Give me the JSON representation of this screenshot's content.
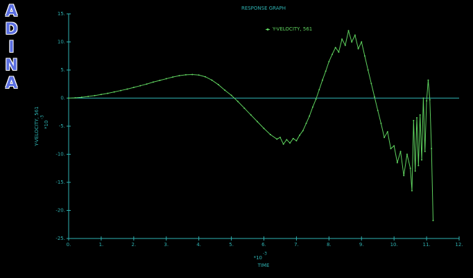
{
  "logo": "ADINA",
  "chart_data": {
    "type": "line",
    "title": "RESPONSE GRAPH",
    "x_label": "TIME",
    "x_scale_base": "*10",
    "x_scale_exp": "-3",
    "y_label": "Y-VELOCITY, 561",
    "y_scale_base": "*10",
    "y_scale_exp": "-3",
    "x": [
      0,
      0.2,
      0.4,
      0.6,
      0.8,
      1.0,
      1.2,
      1.4,
      1.6,
      1.8,
      2.0,
      2.2,
      2.4,
      2.6,
      2.8,
      3.0,
      3.2,
      3.4,
      3.6,
      3.8,
      4.0,
      4.2,
      4.4,
      4.6,
      4.8,
      5.0,
      5.2,
      5.4,
      5.6,
      5.8,
      6.0,
      6.2,
      6.4,
      6.5,
      6.6,
      6.7,
      6.8,
      6.9,
      7.0,
      7.1,
      7.2,
      7.3,
      7.4,
      7.5,
      7.6,
      7.7,
      7.8,
      7.9,
      8.0,
      8.1,
      8.2,
      8.3,
      8.4,
      8.5,
      8.6,
      8.7,
      8.8,
      8.9,
      9.0,
      9.1,
      9.2,
      9.3,
      9.4,
      9.5,
      9.6,
      9.7,
      9.8,
      9.9,
      10.0,
      10.1,
      10.2,
      10.3,
      10.4,
      10.5,
      10.55,
      10.6,
      10.65,
      10.7,
      10.75,
      10.8,
      10.85,
      10.9,
      10.95,
      11.0,
      11.05,
      11.1,
      11.15,
      11.2
    ],
    "series": [
      {
        "name": "Y-VELOCITY, 561",
        "color": "#5fd35f",
        "values": [
          0,
          0.05,
          0.15,
          0.3,
          0.45,
          0.65,
          0.85,
          1.1,
          1.35,
          1.6,
          1.9,
          2.2,
          2.5,
          2.85,
          3.15,
          3.45,
          3.75,
          4.0,
          4.15,
          4.2,
          4.1,
          3.8,
          3.2,
          2.4,
          1.4,
          0.5,
          -0.6,
          -1.8,
          -3.0,
          -4.2,
          -5.4,
          -6.5,
          -7.3,
          -7.0,
          -8.2,
          -7.4,
          -8.0,
          -7.2,
          -7.6,
          -6.6,
          -5.8,
          -4.5,
          -3.2,
          -1.6,
          -0.2,
          1.5,
          3.2,
          4.8,
          6.5,
          7.8,
          9.0,
          8.2,
          10.5,
          9.4,
          12.0,
          10.0,
          11.2,
          8.8,
          10.0,
          7.5,
          5.0,
          2.6,
          0.2,
          -2.2,
          -4.5,
          -7.0,
          -6.0,
          -9.0,
          -8.5,
          -11.5,
          -9.5,
          -13.8,
          -10.0,
          -12.5,
          -16.5,
          -4.0,
          -13.0,
          -3.5,
          -12.0,
          -3.0,
          -11.0,
          0.0,
          -9.5,
          -0.5,
          3.2,
          -0.3,
          -9.0,
          -21.8
        ]
      }
    ],
    "xlim": [
      0,
      12
    ],
    "xticks": [
      {
        "value": 0,
        "label": "0."
      },
      {
        "value": 1,
        "label": "1."
      },
      {
        "value": 2,
        "label": "2."
      },
      {
        "value": 3,
        "label": "3."
      },
      {
        "value": 4,
        "label": "4."
      },
      {
        "value": 5,
        "label": "5."
      },
      {
        "value": 6,
        "label": "6."
      },
      {
        "value": 7,
        "label": "7."
      },
      {
        "value": 8,
        "label": "8."
      },
      {
        "value": 9,
        "label": "9."
      },
      {
        "value": 10,
        "label": "10."
      },
      {
        "value": 11,
        "label": "11."
      },
      {
        "value": 12,
        "label": "12."
      }
    ],
    "ylim": [
      -25,
      15
    ],
    "yticks": [
      {
        "value": 15,
        "label": "15."
      },
      {
        "value": 10,
        "label": "10."
      },
      {
        "value": 5,
        "label": "5."
      },
      {
        "value": 0,
        "label": "0."
      },
      {
        "value": -5,
        "label": "-5."
      },
      {
        "value": -10,
        "label": "-10."
      },
      {
        "value": -15,
        "label": "-15."
      },
      {
        "value": -20,
        "label": "-20."
      },
      {
        "value": -25,
        "label": "-25."
      }
    ],
    "axis_color": "#2fb3b3",
    "grid": false
  }
}
